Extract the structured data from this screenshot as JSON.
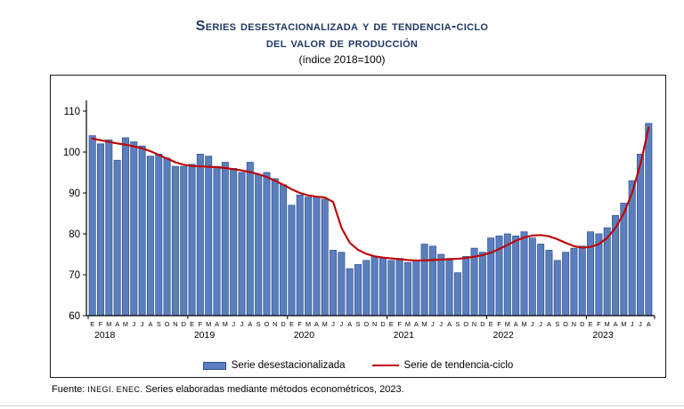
{
  "title": {
    "line1": "Series desestacionalizada y de tendencia-ciclo",
    "line2": "del valor de producción",
    "subtitle": "(índice 2018=100)"
  },
  "legend": {
    "bars_label": "Serie desestacionalizada",
    "line_label": "Serie de tendencia-ciclo"
  },
  "source": {
    "prefix": "Fuente: ",
    "agency": "INEGI. ENEC.",
    "rest": " Series elaboradas mediante métodos econométricos, 2023."
  },
  "colors": {
    "bar_fill": "#5b7fbe",
    "bar_stroke": "#30508f",
    "trend_line": "#c00000",
    "title_text": "#1f3864",
    "axis_text": "#000000"
  },
  "chart_data": {
    "type": "bar",
    "title": "Series desestacionalizada y de tendencia-ciclo del valor de producción (índice 2018=100)",
    "xlabel": "",
    "ylabel": "",
    "ylim": [
      60,
      110
    ],
    "yticks": [
      60,
      70,
      80,
      90,
      100,
      110
    ],
    "grid": false,
    "legend_position": "bottom",
    "month_letters": [
      "E",
      "F",
      "M",
      "A",
      "M",
      "J",
      "J",
      "A",
      "S",
      "O",
      "N",
      "D"
    ],
    "years": [
      "2018",
      "2019",
      "2020",
      "2021",
      "2022",
      "2023"
    ],
    "start": "2018-01",
    "end": "2023-08",
    "series": [
      {
        "name": "Serie desestacionalizada",
        "type": "bar",
        "values": [
          104,
          102,
          103,
          98,
          103.5,
          102.5,
          101.5,
          99,
          99.5,
          98.5,
          96.5,
          96.5,
          97,
          99.5,
          99,
          96.5,
          97.5,
          96,
          95,
          97.5,
          94.5,
          95,
          93.5,
          92,
          87,
          89.5,
          89,
          89,
          88.5,
          76,
          75.5,
          71.5,
          72.5,
          73.5,
          74.5,
          74,
          73.5,
          74,
          73,
          73.5,
          77.5,
          77,
          75,
          74,
          70.5,
          74.5,
          76.5,
          75.5,
          79,
          79.5,
          80,
          79.5,
          80.5,
          79,
          77.5,
          76,
          73.5,
          75.5,
          76.5,
          77,
          80.5,
          80,
          81.5,
          84.5,
          87.5,
          93,
          99.5,
          107
        ]
      },
      {
        "name": "Serie de tendencia-ciclo",
        "type": "line",
        "values": [
          103.3,
          102.9,
          102.5,
          102.1,
          101.8,
          101.4,
          100.9,
          100.2,
          99.3,
          98.4,
          97.5,
          96.9,
          96.6,
          96.5,
          96.4,
          96.3,
          96.1,
          95.8,
          95.5,
          95.1,
          94.6,
          93.9,
          93,
          92,
          90.9,
          90,
          89.4,
          89.1,
          88.9,
          87.8,
          81.5,
          77.8,
          76.1,
          75.1,
          74.5,
          74.2,
          74,
          73.8,
          73.6,
          73.5,
          73.5,
          73.6,
          73.7,
          73.8,
          73.9,
          74.1,
          74.4,
          74.8,
          75.4,
          76.3,
          77.3,
          78.3,
          79.1,
          79.6,
          79.7,
          79.4,
          78.7,
          77.8,
          77,
          76.6,
          76.8,
          77.5,
          79,
          81.5,
          85,
          90,
          97,
          106
        ]
      }
    ]
  }
}
